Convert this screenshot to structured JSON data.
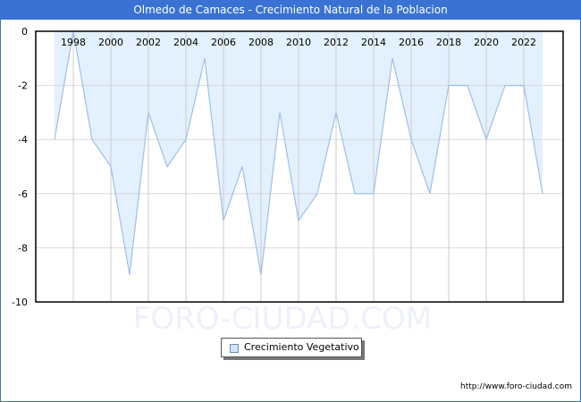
{
  "title": "Olmedo de Camaces - Crecimiento Natural de la Poblacion",
  "footer_url": "http://www.foro-ciudad.com",
  "watermark": "FORO-CIUDAD.COM",
  "legend": {
    "label": "Crecimiento Vegetativo"
  },
  "colors": {
    "header": "#3a72d4",
    "fill": "#e3f0fd",
    "line": "#9fbfe8",
    "grid": "#d8d8d8"
  },
  "chart_data": {
    "type": "area",
    "title": "Olmedo de Camaces - Crecimiento Natural de la Poblacion",
    "xlabel": "",
    "ylabel": "",
    "x": [
      1997,
      1998,
      1999,
      2000,
      2001,
      2002,
      2003,
      2004,
      2005,
      2006,
      2007,
      2008,
      2009,
      2010,
      2011,
      2012,
      2013,
      2014,
      2015,
      2016,
      2017,
      2018,
      2019,
      2020,
      2021,
      2022,
      2023
    ],
    "series": [
      {
        "name": "Crecimiento Vegetativo",
        "values": [
          -4,
          0,
          -4,
          -5,
          -9,
          -3,
          -5,
          -4,
          -1,
          -7,
          -5,
          -9,
          -3,
          -7,
          -6,
          -3,
          -6,
          -6,
          -1,
          -4,
          -6,
          -2,
          -2,
          -4,
          -2,
          -2,
          -6
        ]
      }
    ],
    "x_tick_labels": [
      "1998",
      "2000",
      "2002",
      "2004",
      "2006",
      "2008",
      "2010",
      "2012",
      "2014",
      "2016",
      "2018",
      "2020",
      "2022"
    ],
    "y_tick_labels": [
      "0",
      "-2",
      "-4",
      "-6",
      "-8",
      "-10"
    ],
    "ylim": [
      -10,
      0
    ],
    "grid": true,
    "legend_position": "bottom"
  }
}
